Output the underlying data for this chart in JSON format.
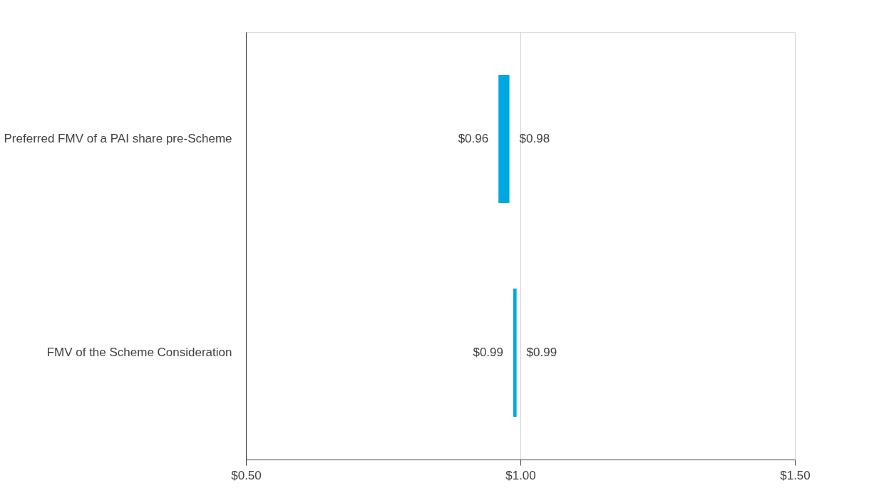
{
  "chart_data": {
    "type": "bar",
    "orientation": "horizontal",
    "categories": [
      "Preferred FMV of a PAI share pre-Scheme",
      "FMV of the Scheme Consideration"
    ],
    "base": [
      0.96,
      0.987
    ],
    "values": [
      0.02,
      0.006
    ],
    "color": "#00a8e1",
    "xlim": [
      0.5,
      1.5
    ],
    "xticks": [
      {
        "value": 0.5,
        "label": "$0.50"
      },
      {
        "value": 1.0,
        "label": "$1.00"
      },
      {
        "value": 1.5,
        "label": "$1.50"
      }
    ],
    "grid": "x",
    "annotations": [
      {
        "text": "$0.96",
        "x": 0.96,
        "y": "Preferred FMV of a PAI share pre-Scheme"
      },
      {
        "text": "$0.98",
        "x": 0.98,
        "y": "Preferred FMV of a PAI share pre-Scheme"
      },
      {
        "text": "$0.99",
        "x": 0.987,
        "y": "FMV of the Scheme Consideration"
      },
      {
        "text": "$0.99",
        "x": 0.993,
        "y": "FMV of the Scheme Consideration"
      }
    ]
  }
}
